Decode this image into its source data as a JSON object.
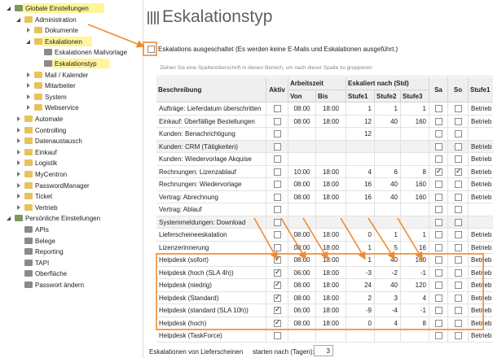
{
  "tree": [
    {
      "label": "Globale Einstellungen",
      "level": 0,
      "expanded": true,
      "highlight": true
    },
    {
      "label": "Administration",
      "level": 1,
      "expanded": true
    },
    {
      "label": "Dokumente",
      "level": 2,
      "expanded": false
    },
    {
      "label": "Eskalationen",
      "level": 2,
      "expanded": true,
      "highlight": true
    },
    {
      "label": "Eskalationen Mailvorlage",
      "level": 3
    },
    {
      "label": "Eskalationstyp",
      "level": 3,
      "highlight": true
    },
    {
      "label": "Mail / Kalender",
      "level": 2,
      "expanded": false
    },
    {
      "label": "Mitarbeiter",
      "level": 2,
      "expanded": false
    },
    {
      "label": "System",
      "level": 2,
      "expanded": false
    },
    {
      "label": "Webservice",
      "level": 2,
      "expanded": false
    },
    {
      "label": "Automate",
      "level": 1,
      "expanded": false
    },
    {
      "label": "Controlling",
      "level": 1,
      "expanded": false
    },
    {
      "label": "Datenaustausch",
      "level": 1,
      "expanded": false
    },
    {
      "label": "Einkauf",
      "level": 1,
      "expanded": false
    },
    {
      "label": "Logistik",
      "level": 1,
      "expanded": false
    },
    {
      "label": "MyCentron",
      "level": 1,
      "expanded": false
    },
    {
      "label": "PasswordManager",
      "level": 1,
      "expanded": false
    },
    {
      "label": "Ticket",
      "level": 1,
      "expanded": false
    },
    {
      "label": "Vertrieb",
      "level": 1,
      "expanded": false
    },
    {
      "label": "Persönliche Einstellungen",
      "level": 0,
      "expanded": true
    },
    {
      "label": "APIs",
      "level": 1
    },
    {
      "label": "Belege",
      "level": 1
    },
    {
      "label": "Reporting",
      "level": 1
    },
    {
      "label": "TAPI",
      "level": 1
    },
    {
      "label": "Oberfläche",
      "level": 1
    },
    {
      "label": "Passwort ändern",
      "level": 1
    }
  ],
  "main": {
    "title": "Eskalationstyp",
    "disable_checkbox": {
      "label": "Eskalations ausgeschaltet",
      "note": "(Es werden keine E-Mails und Eskalationen ausgeführt.)",
      "checked": false
    },
    "group_hint": "Ziehen Sie eine Spaltenüberschrift in diesen Bereich, um nach dieser Spalte zu gruppieren",
    "table": {
      "groups": {
        "arbeitszeit": "Arbeitszeit",
        "eskaliert": "Eskaliert nach (Std)"
      },
      "columns": [
        "Beschreibung",
        "Aktiv",
        "Von",
        "Bis",
        "Stufe1",
        "Stufe2",
        "Stufe3",
        "Sa",
        "So",
        "Stufe1"
      ],
      "rows": [
        [
          "Aufträge: Lieferdatum überschritten",
          false,
          "08:00",
          "18:00",
          1,
          1,
          1,
          false,
          false,
          "Betrieb"
        ],
        [
          "Einkauf: Überfällige Bestellungen",
          false,
          "08:00",
          "18:00",
          12,
          40,
          160,
          false,
          false,
          "Betrieb"
        ],
        [
          "Kunden: Benachrichtigung",
          false,
          null,
          null,
          12,
          null,
          null,
          false,
          false,
          null
        ],
        [
          "Kunden: CRM (Tätigkeiten)",
          false,
          null,
          null,
          null,
          null,
          null,
          false,
          false,
          "Betrieb"
        ],
        [
          "Kunden: Wiedervorlage Akquise",
          false,
          null,
          null,
          null,
          null,
          null,
          false,
          false,
          "Betrieb"
        ],
        [
          "Rechnungen: Lizenzablauf",
          false,
          "10:00",
          "18:00",
          4,
          6,
          8,
          true,
          true,
          "Betrieb"
        ],
        [
          "Rechnungen: Wiedervorlage",
          false,
          "08:00",
          "18:00",
          16,
          40,
          160,
          false,
          false,
          "Betrieb"
        ],
        [
          "Vertrag: Abrechnung",
          false,
          "08:00",
          "18:00",
          16,
          40,
          160,
          false,
          false,
          "Betrieb"
        ],
        [
          "Vertrag: Ablauf",
          false,
          null,
          null,
          null,
          null,
          null,
          false,
          false,
          null
        ],
        [
          "Systemmeldungen: Download",
          false,
          null,
          null,
          null,
          null,
          null,
          false,
          false,
          null
        ],
        [
          "Lieferscheineeskalation",
          false,
          "08:00",
          "18:00",
          0,
          1,
          1,
          false,
          false,
          "Betrieb"
        ],
        [
          "Lizenzerinnerung",
          false,
          "08:00",
          "18:00",
          1,
          5,
          16,
          false,
          false,
          "Betrieb"
        ],
        [
          "Helpdesk (sofort)",
          true,
          "08:00",
          "18:00",
          1,
          40,
          160,
          false,
          false,
          "Betrieb"
        ],
        [
          "Helpdesk (hoch (SLA 4h))",
          true,
          "06:00",
          "18:00",
          -3,
          -2,
          -1,
          false,
          false,
          "Betrieb"
        ],
        [
          "Helpdesk (niedrig)",
          true,
          "08:00",
          "18:00",
          24,
          40,
          120,
          false,
          false,
          "Betrieb"
        ],
        [
          "Helpdesk (Standard)",
          true,
          "08:00",
          "18:00",
          2,
          3,
          4,
          false,
          false,
          "Betrieb"
        ],
        [
          "Helpdesk (standard (SLA 10h))",
          true,
          "06:00",
          "18:00",
          -9,
          -4,
          -1,
          false,
          false,
          "Betrieb"
        ],
        [
          "Helpdesk (hoch)",
          true,
          "08:00",
          "18:00",
          0,
          4,
          8,
          false,
          false,
          "Betrieb"
        ],
        [
          "Helpdesk (TaskForce)",
          false,
          null,
          null,
          null,
          null,
          null,
          false,
          false,
          "Betrieb"
        ]
      ]
    },
    "footer": {
      "label": "Eskalationen von Lieferscheinen",
      "field_label": "starten nach (Tagen):",
      "field_value": 3
    }
  }
}
